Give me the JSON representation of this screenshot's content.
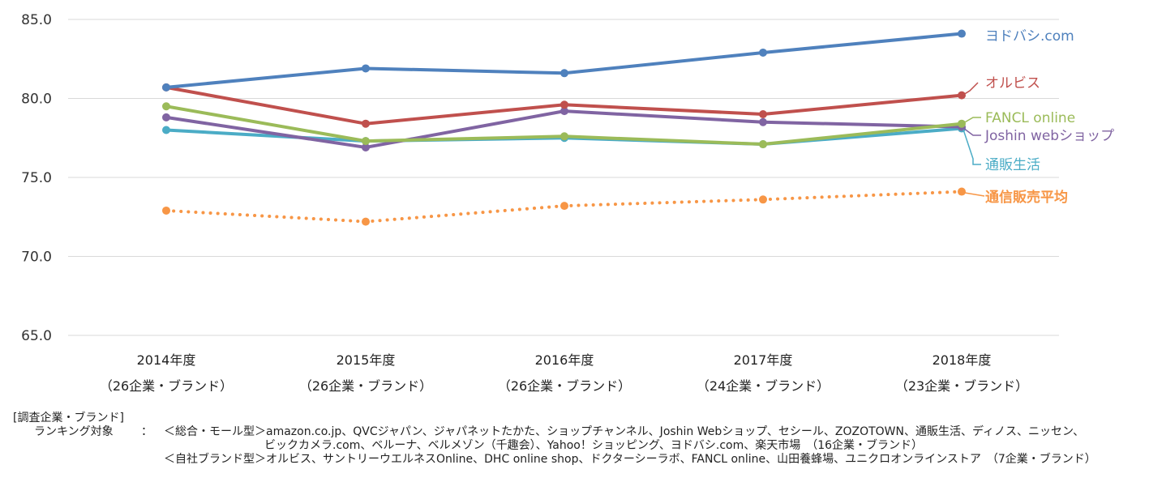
{
  "chart_data": {
    "type": "line",
    "title": "",
    "ylim": [
      65,
      85
    ],
    "yticks": [
      "85.0",
      "80.0",
      "75.0",
      "70.0",
      "65.0"
    ],
    "grid": true,
    "categories": [
      {
        "year": "2014年度",
        "count": "（26企業・ブランド）"
      },
      {
        "year": "2015年度",
        "count": "（26企業・ブランド）"
      },
      {
        "year": "2016年度",
        "count": "（26企業・ブランド）"
      },
      {
        "year": "2017年度",
        "count": "（24企業・ブランド）"
      },
      {
        "year": "2018年度",
        "count": "（23企業・ブランド）"
      }
    ],
    "series": [
      {
        "name": "ヨドバシ.com",
        "color": "#4f81bd",
        "values": [
          80.7,
          81.9,
          81.6,
          82.9,
          84.1
        ],
        "style": "solid"
      },
      {
        "name": "オルビス",
        "color": "#c0504d",
        "values": [
          80.7,
          78.4,
          79.6,
          79.0,
          80.2
        ],
        "style": "solid"
      },
      {
        "name": "FANCL online",
        "color": "#9bbb59",
        "values": [
          79.5,
          77.3,
          77.6,
          77.1,
          78.4
        ],
        "style": "solid"
      },
      {
        "name": "Joshin webショップ",
        "color": "#8064a2",
        "values": [
          78.8,
          76.9,
          79.2,
          78.5,
          78.2
        ],
        "style": "solid"
      },
      {
        "name": "通販生活",
        "color": "#4bacc6",
        "values": [
          78.0,
          77.3,
          77.5,
          77.1,
          78.1
        ],
        "style": "solid"
      },
      {
        "name": "通信販売平均",
        "color": "#f79646",
        "values": [
          72.9,
          72.2,
          73.2,
          73.6,
          74.1
        ],
        "style": "dotted",
        "bold": true
      }
    ]
  },
  "footer": {
    "heading": "[調査企業・ブランド]",
    "ranking_label": "ランキング対象",
    "colon": "：",
    "general_line1": "＜総合・モール型＞amazon.co.jp、QVCジャパン、ジャパネットたかた、ショップチャンネル、Joshin Webショップ、セシール、ZOZOTOWN、通販生活、ディノス、ニッセン、",
    "general_line2": "ビックカメラ.com、ベルーナ、ベルメゾン（千趣会）、Yahoo！ショッピング、ヨドバシ.com、楽天市場　（16企業・ブランド）",
    "own_line": "＜自社ブランド型＞オルビス、サントリーウエルネスOnline、DHC online shop、ドクターシーラボ、FANCL online、山田養蜂場、ユニクロオンラインストア　（7企業・ブランド）"
  }
}
